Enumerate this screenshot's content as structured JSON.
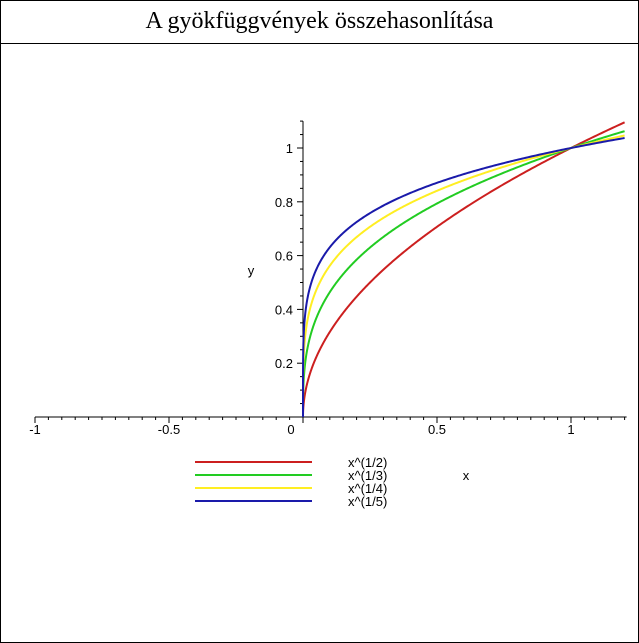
{
  "title": "A gyökfüggvények összehasonlítása",
  "chart_data": {
    "type": "line",
    "title": "A gyökfüggvények összehasonlítása",
    "xlabel": "x",
    "ylabel": "y",
    "xlim": [
      -1,
      1.2
    ],
    "ylim": [
      0,
      1.1
    ],
    "x_ticks": [
      {
        "value": -1,
        "label": "-1"
      },
      {
        "value": -0.5,
        "label": "-0.5"
      },
      {
        "value": 0,
        "label": "0"
      },
      {
        "value": 0.5,
        "label": "0.5"
      },
      {
        "value": 1,
        "label": "1"
      }
    ],
    "y_ticks": [
      {
        "value": 0.2,
        "label": "0.2"
      },
      {
        "value": 0.4,
        "label": "0.4"
      },
      {
        "value": 0.6,
        "label": "0.6"
      },
      {
        "value": 0.8,
        "label": "0.8"
      },
      {
        "value": 1,
        "label": "1"
      }
    ],
    "grid": false,
    "legend_position": "bottom-left",
    "series": [
      {
        "name": "x^(1/2)",
        "exponent": 0.5,
        "color": "#cc1f1f",
        "x": [
          0,
          0.0001,
          0.001,
          0.01,
          0.05,
          0.1,
          0.2,
          0.3,
          0.4,
          0.5,
          0.6,
          0.7,
          0.8,
          0.9,
          1.0,
          1.1,
          1.2
        ],
        "y": [
          0,
          0.01,
          0.032,
          0.1,
          0.224,
          0.316,
          0.447,
          0.548,
          0.632,
          0.707,
          0.775,
          0.837,
          0.894,
          0.949,
          1.0,
          1.049,
          1.095
        ]
      },
      {
        "name": "x^(1/3)",
        "exponent": 0.3333,
        "color": "#22cc22",
        "x": [
          0,
          0.0001,
          0.001,
          0.01,
          0.05,
          0.1,
          0.2,
          0.3,
          0.4,
          0.5,
          0.6,
          0.7,
          0.8,
          0.9,
          1.0,
          1.1,
          1.2
        ],
        "y": [
          0,
          0.046,
          0.1,
          0.215,
          0.368,
          0.464,
          0.585,
          0.669,
          0.737,
          0.794,
          0.843,
          0.888,
          0.928,
          0.965,
          1.0,
          1.032,
          1.063
        ]
      },
      {
        "name": "x^(1/4)",
        "exponent": 0.25,
        "color": "#ffee22",
        "x": [
          0,
          0.0001,
          0.001,
          0.01,
          0.05,
          0.1,
          0.2,
          0.3,
          0.4,
          0.5,
          0.6,
          0.7,
          0.8,
          0.9,
          1.0,
          1.1,
          1.2
        ],
        "y": [
          0,
          0.1,
          0.178,
          0.316,
          0.473,
          0.562,
          0.669,
          0.74,
          0.795,
          0.841,
          0.88,
          0.915,
          0.946,
          0.974,
          1.0,
          1.024,
          1.047
        ]
      },
      {
        "name": "x^(1/5)",
        "exponent": 0.2,
        "color": "#1a1aaa",
        "x": [
          0,
          0.0001,
          0.001,
          0.01,
          0.05,
          0.1,
          0.2,
          0.3,
          0.4,
          0.5,
          0.6,
          0.7,
          0.8,
          0.9,
          1.0,
          1.1,
          1.2
        ],
        "y": [
          0,
          0.158,
          0.251,
          0.398,
          0.549,
          0.631,
          0.725,
          0.786,
          0.833,
          0.871,
          0.903,
          0.931,
          0.956,
          0.979,
          1.0,
          1.019,
          1.037
        ]
      }
    ]
  }
}
